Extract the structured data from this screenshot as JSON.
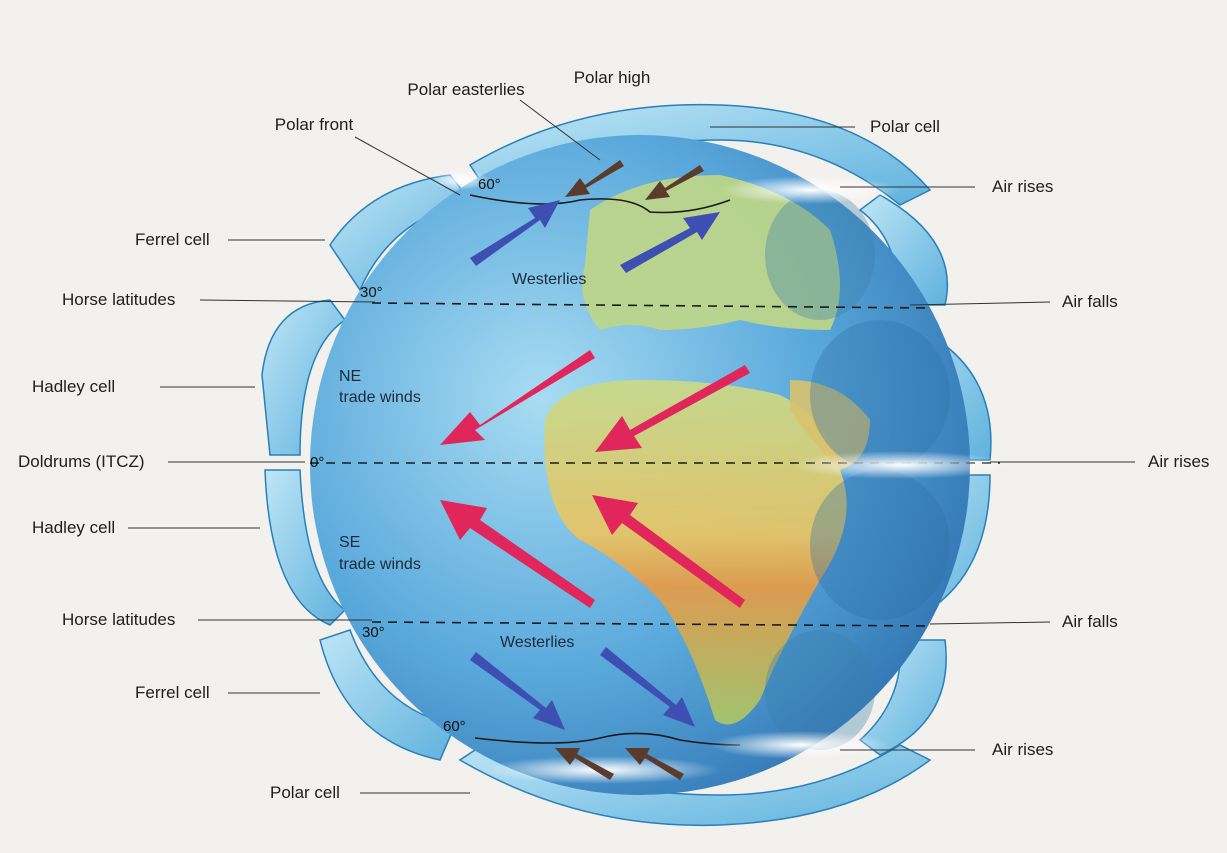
{
  "labels": {
    "polar_high": "Polar high",
    "polar_easterlies": "Polar easterlies",
    "polar_front": "Polar front",
    "polar_cell_top": "Polar cell",
    "air_rises_top": "Air rises",
    "ferrel_cell_top": "Ferrel cell",
    "horse_latitudes_top": "Horse latitudes",
    "air_falls_top": "Air falls",
    "hadley_cell_top": "Hadley cell",
    "doldrums": "Doldrums (ITCZ)",
    "air_rises_equator": "Air rises",
    "hadley_cell_bottom": "Hadley cell",
    "horse_latitudes_bottom": "Horse latitudes",
    "air_falls_bottom": "Air falls",
    "ferrel_cell_bottom": "Ferrel cell",
    "air_rises_bottom": "Air rises",
    "polar_cell_bottom": "Polar cell"
  },
  "globe": {
    "westerlies_north": "Westerlies",
    "ne_trade_line1": "NE",
    "ne_trade_line2": "trade winds",
    "se_trade_line1": "SE",
    "se_trade_line2": "trade winds",
    "westerlies_south": "Westerlies",
    "lat_60_north": "60°",
    "lat_30_north": "30°",
    "lat_0": "0°",
    "lat_30_south": "30°",
    "lat_60_south": "60°"
  },
  "colors": {
    "ocean": "#4f9fd6",
    "cell": "#8fd0ee",
    "trade_wind_arrow": "#e0265a",
    "westerly_arrow": "#3d4fb0",
    "easterly_arrow": "#5b3b2c"
  }
}
